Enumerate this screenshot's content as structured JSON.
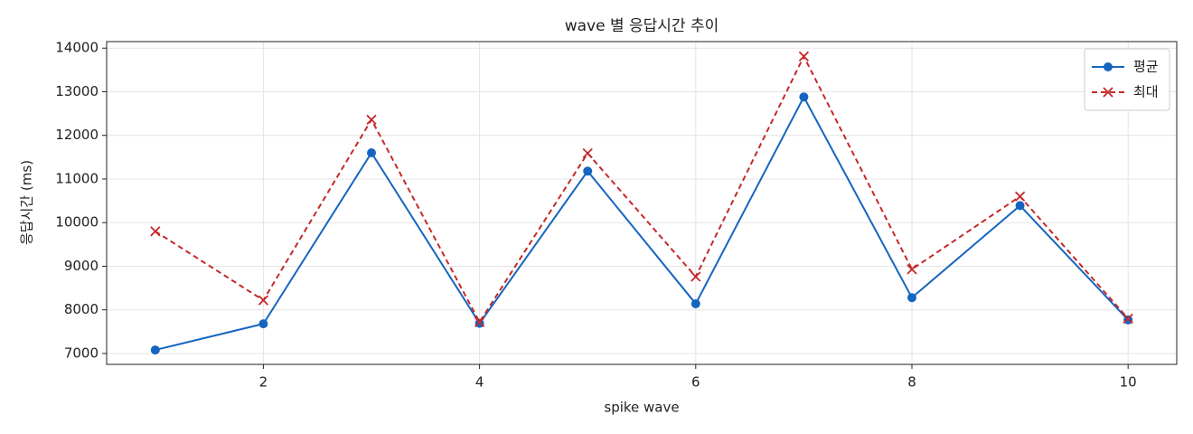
{
  "chart_data": {
    "type": "line",
    "title": "wave 별 응답시간 추이",
    "xlabel": "spike wave",
    "ylabel": "응답시간 (ms)",
    "x": [
      1,
      2,
      3,
      4,
      5,
      6,
      7,
      8,
      9,
      10
    ],
    "series": [
      {
        "name": "평균",
        "color": "#1565c0",
        "marker": "circle",
        "dash": "solid",
        "values": [
          7080,
          7680,
          11600,
          7690,
          11180,
          8140,
          12880,
          8280,
          10390,
          7770
        ]
      },
      {
        "name": "최대",
        "color": "#c62828",
        "marker": "x",
        "dash": "dashed",
        "values": [
          9800,
          8220,
          12360,
          7720,
          11590,
          8760,
          13810,
          8930,
          10600,
          7800
        ]
      }
    ],
    "xlim": [
      0.55,
      10.45
    ],
    "xticks": [
      2,
      4,
      6,
      8,
      10
    ],
    "ylim": [
      6750,
      14150
    ],
    "yticks": [
      7000,
      8000,
      9000,
      10000,
      11000,
      12000,
      13000,
      14000
    ],
    "grid": true,
    "legend": "upper right"
  }
}
